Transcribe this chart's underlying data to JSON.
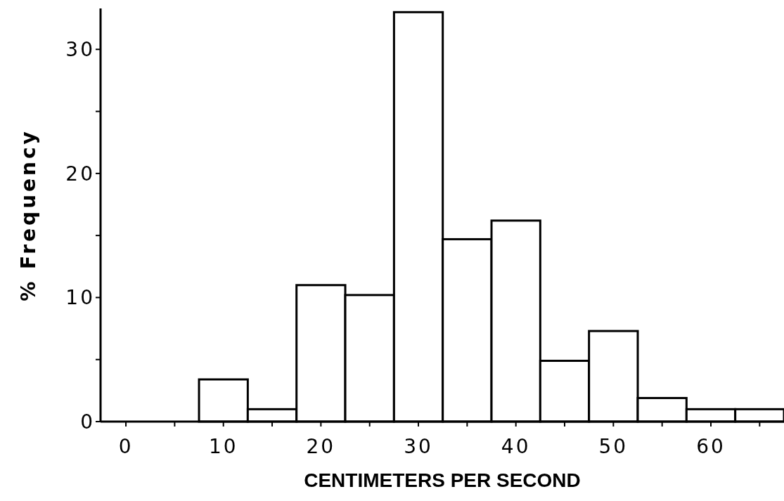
{
  "chart_data": {
    "type": "histogram",
    "xlabel": "CENTIMETERS PER SECOND",
    "ylabel": "% Frequency",
    "bins": [
      7.5,
      12.5,
      17.5,
      22.5,
      27.5,
      32.5,
      37.5,
      42.5,
      47.5,
      52.5,
      57.5,
      62.5,
      67.5
    ],
    "values": [
      3.4,
      1,
      11,
      10.2,
      33,
      14.7,
      16.2,
      4.9,
      7.3,
      1.9,
      1,
      1
    ],
    "color": "#ffffff",
    "xlim": [
      -2.6,
      67.5
    ],
    "xticks": [
      0,
      {
        "value": 5,
        "label": null
      },
      10,
      {
        "value": 15,
        "label": null
      },
      20,
      {
        "value": 25,
        "label": null
      },
      30,
      {
        "value": 35,
        "label": null
      },
      40,
      {
        "value": 45,
        "label": null
      },
      50,
      {
        "value": 55,
        "label": null
      },
      60,
      {
        "value": 65,
        "label": null
      }
    ],
    "ylim": [
      0,
      33.3
    ],
    "yticks": [
      0,
      {
        "value": 5,
        "label": null
      },
      10,
      {
        "value": 15,
        "label": null
      },
      20,
      {
        "value": 25,
        "label": null
      },
      30
    ],
    "grid": false
  }
}
